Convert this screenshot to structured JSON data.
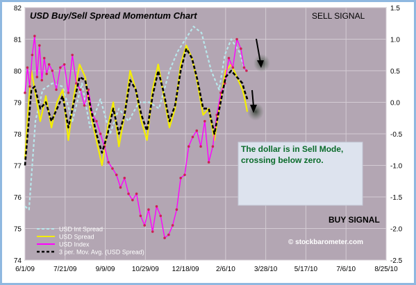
{
  "chart_data": {
    "type": "line",
    "title": "USD Buy/Sell Spread Momentum Chart",
    "x_tick_labels": [
      "6/1/09",
      "7/21/09",
      "9/9/09",
      "10/29/09",
      "12/18/09",
      "2/6/10",
      "3/28/10",
      "5/17/10",
      "7/6/10",
      "8/25/10"
    ],
    "x_range": [
      "2009-06-01",
      "2010-08-25"
    ],
    "y_left": {
      "range": [
        74,
        82
      ],
      "ticks": [
        "74",
        "75",
        "76",
        "77",
        "78",
        "79",
        "80",
        "81",
        "82"
      ]
    },
    "y_right": {
      "range": [
        -2.5,
        1.5
      ],
      "ticks": [
        "-2.5",
        "-2.0",
        "-1.5",
        "-1.0",
        "-0.5",
        "0.0",
        "0.5",
        "1.0",
        "1.5"
      ]
    },
    "grid": true,
    "legend_position": "bottom-left",
    "annotations": {
      "sell_signal": "SELL SIGNAL",
      "buy_signal": "BUY SIGNAL",
      "note": "The dollar is in Sell Mode, crossing below zero.",
      "watermark": "© stockbarometer.com"
    },
    "series": [
      {
        "name": "USD Int Spread",
        "axis": "right",
        "color": "#b8e8ec",
        "x": [
          "2009-06-01",
          "2009-06-06",
          "2009-06-14",
          "2009-06-23",
          "2009-07-05",
          "2009-07-18",
          "2009-07-30",
          "2009-08-11",
          "2009-08-21",
          "2009-09-03",
          "2009-09-15",
          "2009-09-26",
          "2009-10-08",
          "2009-10-21",
          "2009-11-03",
          "2009-11-15",
          "2009-11-28",
          "2009-12-08",
          "2009-12-18",
          "2009-12-28",
          "2010-01-07",
          "2010-01-19",
          "2010-01-29",
          "2010-02-05",
          "2010-02-13",
          "2010-02-23",
          "2010-03-01"
        ],
        "y": [
          -1.65,
          -1.7,
          -0.3,
          0.2,
          0.3,
          0.25,
          -0.3,
          0.3,
          -0.4,
          0.05,
          -0.5,
          -0.1,
          -0.3,
          0.0,
          0.0,
          -0.1,
          0.5,
          0.8,
          1.0,
          1.2,
          1.1,
          0.5,
          0.2,
          0.75,
          1.0,
          0.8,
          0.55
        ]
      },
      {
        "name": "USD Spread",
        "axis": "right",
        "color": "#f4ee00",
        "x": [
          "2009-06-01",
          "2009-06-05",
          "2009-06-09",
          "2009-06-13",
          "2009-06-20",
          "2009-06-27",
          "2009-07-04",
          "2009-07-11",
          "2009-07-18",
          "2009-07-25",
          "2009-08-01",
          "2009-08-08",
          "2009-08-15",
          "2009-08-22",
          "2009-08-29",
          "2009-09-05",
          "2009-09-12",
          "2009-09-19",
          "2009-09-26",
          "2009-10-03",
          "2009-10-10",
          "2009-10-17",
          "2009-10-24",
          "2009-10-31",
          "2009-11-07",
          "2009-11-14",
          "2009-11-21",
          "2009-11-28",
          "2009-12-05",
          "2009-12-12",
          "2009-12-19",
          "2009-12-26",
          "2010-01-02",
          "2010-01-09",
          "2010-01-16",
          "2010-01-23",
          "2010-01-30",
          "2010-02-06",
          "2010-02-13",
          "2010-02-20",
          "2010-02-27",
          "2010-03-01",
          "2010-03-05"
        ],
        "y": [
          -0.9,
          -0.1,
          0.5,
          0.2,
          -0.3,
          0.1,
          -0.4,
          0.0,
          0.2,
          -0.6,
          0.1,
          0.6,
          0.4,
          -0.2,
          -0.6,
          -1.0,
          -0.4,
          0.0,
          -0.7,
          -0.2,
          0.5,
          0.2,
          -0.3,
          -0.6,
          0.2,
          0.6,
          0.1,
          -0.4,
          -0.1,
          0.6,
          0.9,
          0.7,
          0.3,
          -0.2,
          -0.1,
          -0.6,
          0.0,
          0.5,
          0.6,
          0.4,
          0.2,
          0.1,
          -0.15
        ]
      },
      {
        "name": "USD Index",
        "axis": "left",
        "color": "#ff00ff",
        "x": [
          "2009-06-01",
          "2009-06-04",
          "2009-06-07",
          "2009-06-10",
          "2009-06-13",
          "2009-06-16",
          "2009-06-19",
          "2009-06-22",
          "2009-06-25",
          "2009-06-28",
          "2009-07-01",
          "2009-07-05",
          "2009-07-10",
          "2009-07-15",
          "2009-07-20",
          "2009-07-25",
          "2009-07-30",
          "2009-08-04",
          "2009-08-09",
          "2009-08-14",
          "2009-08-19",
          "2009-08-24",
          "2009-08-29",
          "2009-09-03",
          "2009-09-08",
          "2009-09-13",
          "2009-09-18",
          "2009-09-23",
          "2009-09-28",
          "2009-10-03",
          "2009-10-08",
          "2009-10-13",
          "2009-10-18",
          "2009-10-23",
          "2009-10-28",
          "2009-11-02",
          "2009-11-07",
          "2009-11-12",
          "2009-11-17",
          "2009-11-22",
          "2009-11-27",
          "2009-12-02",
          "2009-12-07",
          "2009-12-12",
          "2009-12-17",
          "2009-12-22",
          "2009-12-27",
          "2010-01-01",
          "2010-01-06",
          "2010-01-11",
          "2010-01-16",
          "2010-01-21",
          "2010-01-26",
          "2010-01-31",
          "2010-02-05",
          "2010-02-10",
          "2010-02-15",
          "2010-02-20",
          "2010-02-25",
          "2010-03-01",
          "2010-03-04"
        ],
        "y": [
          79.3,
          80.1,
          79.5,
          80.5,
          81.1,
          79.8,
          80.8,
          79.7,
          80.4,
          79.9,
          80.2,
          80.0,
          79.4,
          80.1,
          80.2,
          79.3,
          80.5,
          79.6,
          79.4,
          78.9,
          79.4,
          78.6,
          78.4,
          78.0,
          77.6,
          77.1,
          76.9,
          76.7,
          76.3,
          76.6,
          76.1,
          75.9,
          76.1,
          75.4,
          75.1,
          75.6,
          74.9,
          75.7,
          75.4,
          74.7,
          74.8,
          75.1,
          75.6,
          76.6,
          76.7,
          77.6,
          77.9,
          78.1,
          77.6,
          78.4,
          77.1,
          77.6,
          78.6,
          79.3,
          79.6,
          80.4,
          80.1,
          81.0,
          80.7,
          80.1,
          80.0
        ]
      },
      {
        "name": "3 per. Mov. Avg. (USD Spread)",
        "axis": "right",
        "color": "#000000",
        "dash": true,
        "x": [
          "2009-06-01",
          "2009-06-05",
          "2009-06-09",
          "2009-06-13",
          "2009-06-20",
          "2009-06-27",
          "2009-07-04",
          "2009-07-11",
          "2009-07-18",
          "2009-07-25",
          "2009-08-01",
          "2009-08-08",
          "2009-08-15",
          "2009-08-22",
          "2009-08-29",
          "2009-09-05",
          "2009-09-12",
          "2009-09-19",
          "2009-09-26",
          "2009-10-03",
          "2009-10-10",
          "2009-10-17",
          "2009-10-24",
          "2009-10-31",
          "2009-11-07",
          "2009-11-14",
          "2009-11-21",
          "2009-11-28",
          "2009-12-05",
          "2009-12-12",
          "2009-12-19",
          "2009-12-26",
          "2010-01-02",
          "2010-01-09",
          "2010-01-16",
          "2010-01-23",
          "2010-01-30",
          "2010-02-06",
          "2010-02-13",
          "2010-02-20",
          "2010-02-27",
          "2010-03-01",
          "2010-03-05"
        ],
        "y": [
          -1.0,
          -0.4,
          0.2,
          0.25,
          -0.1,
          0.0,
          -0.3,
          -0.1,
          0.1,
          -0.4,
          0.0,
          0.4,
          0.35,
          -0.1,
          -0.5,
          -0.8,
          -0.5,
          -0.1,
          -0.5,
          -0.2,
          0.35,
          0.2,
          -0.2,
          -0.45,
          0.1,
          0.5,
          0.15,
          -0.3,
          -0.05,
          0.5,
          0.85,
          0.7,
          0.35,
          -0.1,
          -0.1,
          -0.5,
          -0.05,
          0.4,
          0.5,
          0.4,
          0.3,
          0.2,
          0.05
        ]
      }
    ]
  }
}
